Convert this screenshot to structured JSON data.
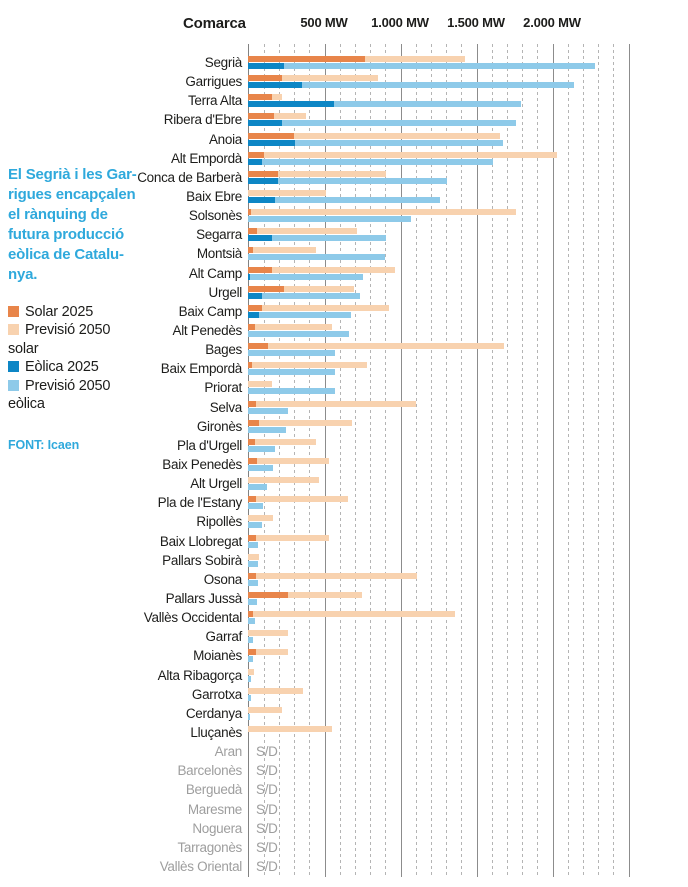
{
  "header": {
    "comarca_label": "Comarca"
  },
  "sidebar": {
    "intro_lines": [
      "El Segrià i les Gar-",
      "rigues encapçalen",
      "el rànquing de",
      "futura producció",
      "eòlica de Catalu-",
      "nya."
    ],
    "intro_color": "#2fa9dc",
    "legend_items": [
      {
        "line1": "Solar 2025",
        "line2": "",
        "color_key": "solar_2025"
      },
      {
        "line1": "Previsió 2050",
        "line2": "solar",
        "color_key": "solar_2050"
      },
      {
        "line1": "Eòlica 2025",
        "line2": "",
        "color_key": "eolica_2025"
      },
      {
        "line1": "Previsió 2050",
        "line2": "eòlica",
        "color_key": "eolica_2050"
      }
    ],
    "source": "FONT: Icaen"
  },
  "chart_data": {
    "type": "bar",
    "orientation": "horizontal",
    "unit": "MW",
    "nd_label": "S/D",
    "colors": {
      "solar_2025": "#e8854a",
      "solar_2050": "#f8d2af",
      "eolica_2025": "#0d86c5",
      "eolica_2050": "#8ecae9"
    },
    "series": [
      {
        "key": "solar_2025",
        "name": "Solar 2025"
      },
      {
        "key": "solar_2050",
        "name": "Previsió 2050 solar"
      },
      {
        "key": "eolica_2025",
        "name": "Eòlica 2025"
      },
      {
        "key": "eolica_2050",
        "name": "Previsió 2050 eòlica"
      }
    ],
    "axis": {
      "min_mw": 0,
      "max_mw": 2500,
      "minor_step_mw": 100,
      "major_step_mw": 500,
      "tick_labels": [
        {
          "mw": 500,
          "label": "500 MW"
        },
        {
          "mw": 1000,
          "label": "1.000 MW"
        },
        {
          "mw": 1500,
          "label": "1.500 MW"
        },
        {
          "mw": 2000,
          "label": "2.000 MW"
        }
      ]
    },
    "rows": [
      {
        "name": "Segrià",
        "solar_2025": 770,
        "solar_2050": 1430,
        "eolica_2025": 235,
        "eolica_2050": 2280
      },
      {
        "name": "Garrigues",
        "solar_2025": 225,
        "solar_2050": 855,
        "eolica_2025": 355,
        "eolica_2050": 2145
      },
      {
        "name": "Terra Alta",
        "solar_2025": 155,
        "solar_2050": 225,
        "eolica_2025": 565,
        "eolica_2050": 1795
      },
      {
        "name": "Ribera d'Ebre",
        "solar_2025": 170,
        "solar_2050": 380,
        "eolica_2025": 225,
        "eolica_2050": 1760
      },
      {
        "name": "Anoia",
        "solar_2025": 305,
        "solar_2050": 1660,
        "eolica_2025": 310,
        "eolica_2050": 1680
      },
      {
        "name": "Alt Empordà",
        "solar_2025": 105,
        "solar_2050": 2030,
        "eolica_2025": 90,
        "eolica_2050": 1610
      },
      {
        "name": "Conca de Barberà",
        "solar_2025": 195,
        "solar_2050": 905,
        "eolica_2025": 195,
        "eolica_2050": 1310
      },
      {
        "name": "Baix Ebre",
        "solar_2025": 0,
        "solar_2050": 515,
        "eolica_2025": 180,
        "eolica_2050": 1265
      },
      {
        "name": "Solsonès",
        "solar_2025": 20,
        "solar_2050": 1765,
        "eolica_2025": 0,
        "eolica_2050": 1070
      },
      {
        "name": "Segarra",
        "solar_2025": 60,
        "solar_2050": 720,
        "eolica_2025": 155,
        "eolica_2050": 910
      },
      {
        "name": "Montsià",
        "solar_2025": 30,
        "solar_2050": 450,
        "eolica_2025": 0,
        "eolica_2050": 900
      },
      {
        "name": "Alt Camp",
        "solar_2025": 160,
        "solar_2050": 965,
        "eolica_2025": 15,
        "eolica_2050": 755
      },
      {
        "name": "Urgell",
        "solar_2025": 240,
        "solar_2050": 695,
        "eolica_2025": 90,
        "eolica_2050": 740
      },
      {
        "name": "Baix Camp",
        "solar_2025": 90,
        "solar_2050": 925,
        "eolica_2025": 70,
        "eolica_2050": 680
      },
      {
        "name": "Alt Penedès",
        "solar_2025": 45,
        "solar_2050": 555,
        "eolica_2025": 0,
        "eolica_2050": 665
      },
      {
        "name": "Bages",
        "solar_2025": 130,
        "solar_2050": 1685,
        "eolica_2025": 0,
        "eolica_2050": 570
      },
      {
        "name": "Baix Empordà",
        "solar_2025": 25,
        "solar_2050": 780,
        "eolica_2025": 0,
        "eolica_2050": 570
      },
      {
        "name": "Priorat",
        "solar_2025": 0,
        "solar_2050": 155,
        "eolica_2025": 0,
        "eolica_2050": 570
      },
      {
        "name": "Selva",
        "solar_2025": 50,
        "solar_2050": 1105,
        "eolica_2025": 0,
        "eolica_2050": 260
      },
      {
        "name": "Gironès",
        "solar_2025": 70,
        "solar_2050": 685,
        "eolica_2025": 0,
        "eolica_2050": 250
      },
      {
        "name": "Pla d'Urgell",
        "solar_2025": 45,
        "solar_2050": 445,
        "eolica_2025": 0,
        "eolica_2050": 175
      },
      {
        "name": "Baix Penedès",
        "solar_2025": 60,
        "solar_2050": 530,
        "eolica_2025": 0,
        "eolica_2050": 165
      },
      {
        "name": "Alt Urgell",
        "solar_2025": 0,
        "solar_2050": 465,
        "eolica_2025": 0,
        "eolica_2050": 125
      },
      {
        "name": "Pla de l'Estany",
        "solar_2025": 55,
        "solar_2050": 655,
        "eolica_2025": 0,
        "eolica_2050": 100
      },
      {
        "name": "Ripollès",
        "solar_2025": 0,
        "solar_2050": 165,
        "eolica_2025": 0,
        "eolica_2050": 90
      },
      {
        "name": "Baix Llobregat",
        "solar_2025": 55,
        "solar_2050": 530,
        "eolica_2025": 0,
        "eolica_2050": 65
      },
      {
        "name": "Pallars Sobirà",
        "solar_2025": 0,
        "solar_2050": 70,
        "eolica_2025": 0,
        "eolica_2050": 65
      },
      {
        "name": "Osona",
        "solar_2025": 55,
        "solar_2050": 1115,
        "eolica_2025": 0,
        "eolica_2050": 65
      },
      {
        "name": "Pallars Jussà",
        "solar_2025": 260,
        "solar_2050": 750,
        "eolica_2025": 0,
        "eolica_2050": 60
      },
      {
        "name": "Vallès Occidental",
        "solar_2025": 30,
        "solar_2050": 1365,
        "eolica_2025": 0,
        "eolica_2050": 45
      },
      {
        "name": "Garraf",
        "solar_2025": 0,
        "solar_2050": 265,
        "eolica_2025": 0,
        "eolica_2050": 30
      },
      {
        "name": "Moianès",
        "solar_2025": 50,
        "solar_2050": 265,
        "eolica_2025": 0,
        "eolica_2050": 35
      },
      {
        "name": "Alta Ribagorça",
        "solar_2025": 0,
        "solar_2050": 40,
        "eolica_2025": 0,
        "eolica_2050": 20
      },
      {
        "name": "Garrotxa",
        "solar_2025": 0,
        "solar_2050": 360,
        "eolica_2025": 0,
        "eolica_2050": 20
      },
      {
        "name": "Cerdanya",
        "solar_2025": 0,
        "solar_2050": 225,
        "eolica_2025": 0,
        "eolica_2050": 10
      },
      {
        "name": "Lluçanès",
        "solar_2025": 0,
        "solar_2050": 550,
        "eolica_2025": 0,
        "eolica_2050": 0
      },
      {
        "name": "Aran",
        "no_data": true
      },
      {
        "name": "Barcelonès",
        "no_data": true
      },
      {
        "name": "Berguedà",
        "no_data": true
      },
      {
        "name": "Maresme",
        "no_data": true
      },
      {
        "name": "Noguera",
        "no_data": true
      },
      {
        "name": "Tarragonès",
        "no_data": true
      },
      {
        "name": "Vallès Oriental",
        "no_data": true
      }
    ]
  }
}
